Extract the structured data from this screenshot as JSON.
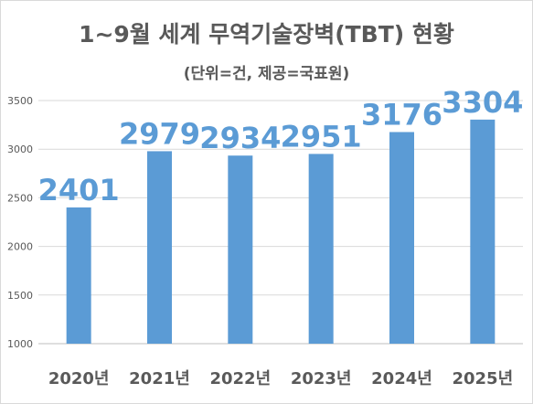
{
  "chart_data": {
    "type": "bar",
    "title": "1~9월 세계 무역기술장벽(TBT) 현황",
    "subtitle": "(단위=건, 제공=국표원)",
    "categories": [
      "2020년",
      "2021년",
      "2022년",
      "2023년",
      "2024년",
      "2025년"
    ],
    "values": [
      2401,
      2979,
      2934,
      2951,
      3176,
      3304
    ],
    "ylim": [
      1000,
      3500
    ],
    "yticks": [
      1000,
      1500,
      2000,
      2500,
      3000,
      3500
    ],
    "grid": true,
    "legend": "none",
    "bar_color": "#5b9bd5",
    "label_color": "#5b9bd5"
  }
}
